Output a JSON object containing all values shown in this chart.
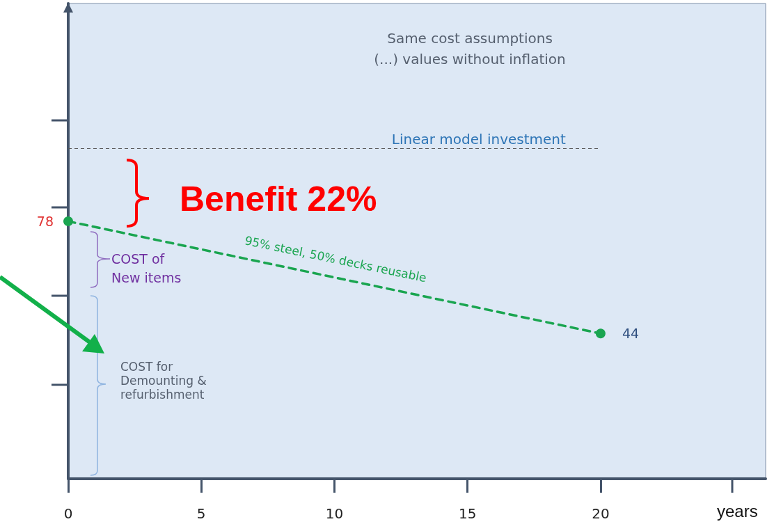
{
  "chart_data": {
    "type": "line",
    "xlabel": "years",
    "x": [
      0,
      20
    ],
    "series": [
      {
        "color": "#1aa550",
        "values": [
          78,
          44
        ]
      }
    ],
    "data_labels": true,
    "marker": "circle",
    "line_style": "dashed",
    "xlim": [
      0,
      26.2
    ],
    "xticks": [
      0,
      5,
      10,
      15,
      20
    ],
    "ylim": [
      0,
      144
    ],
    "tick_labels": "x",
    "grid": false,
    "ref_lines": [
      {
        "axis": "y",
        "value": 100,
        "label": "Linear model investment",
        "color": "#595959",
        "line_style": "dashed"
      }
    ],
    "annotations": [
      "Same cost assumptions\n(...) values without inflation",
      "Benefit 22%",
      "COST of\nNew items",
      "COST for\nDemounting &\nrefurbishment",
      {
        "text": "95% steel, 50% decks reusable",
        "x": 10,
        "y": 61
      }
    ]
  }
}
